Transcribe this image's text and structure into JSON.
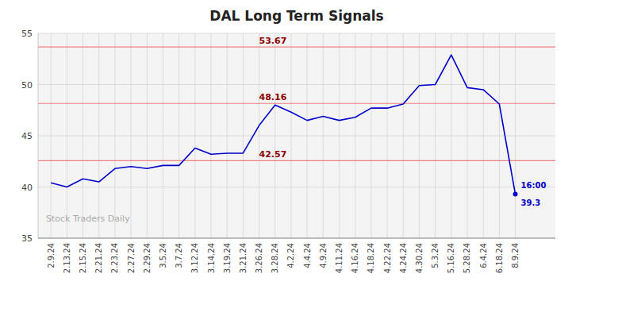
{
  "chart_data": {
    "type": "line",
    "title": "DAL Long Term Signals",
    "categories": [
      "2.9.24",
      "2.13.24",
      "2.15.24",
      "2.21.24",
      "2.23.24",
      "2.27.24",
      "2.29.24",
      "3.5.24",
      "3.7.24",
      "3.12.24",
      "3.14.24",
      "3.19.24",
      "3.21.24",
      "3.26.24",
      "3.28.24",
      "4.2.24",
      "4.4.24",
      "4.9.24",
      "4.11.24",
      "4.16.24",
      "4.18.24",
      "4.22.24",
      "4.24.24",
      "4.30.24",
      "5.3.24",
      "5.16.24",
      "5.28.24",
      "6.4.24",
      "6.18.24",
      "8.9.24"
    ],
    "values": [
      40.4,
      40.0,
      40.8,
      40.5,
      41.8,
      42.0,
      41.8,
      42.1,
      42.1,
      43.8,
      43.2,
      43.3,
      43.3,
      46.0,
      48.0,
      47.3,
      46.5,
      46.9,
      46.5,
      46.8,
      47.7,
      47.7,
      48.1,
      49.9,
      50.0,
      52.9,
      49.7,
      49.5,
      48.1,
      39.3
    ],
    "color": "#0000cc",
    "ylim": [
      35,
      55
    ],
    "yticks": [
      35,
      40,
      45,
      50,
      55
    ],
    "grid": true,
    "hlines": [
      {
        "value": 42.57,
        "color": "#f08080"
      },
      {
        "value": 48.16,
        "color": "#f08080"
      },
      {
        "value": 53.67,
        "color": "#f08080"
      }
    ],
    "annotations": [
      {
        "text": "16:00"
      },
      {
        "text": "39.3"
      }
    ],
    "watermark": "Stock Traders Daily"
  }
}
